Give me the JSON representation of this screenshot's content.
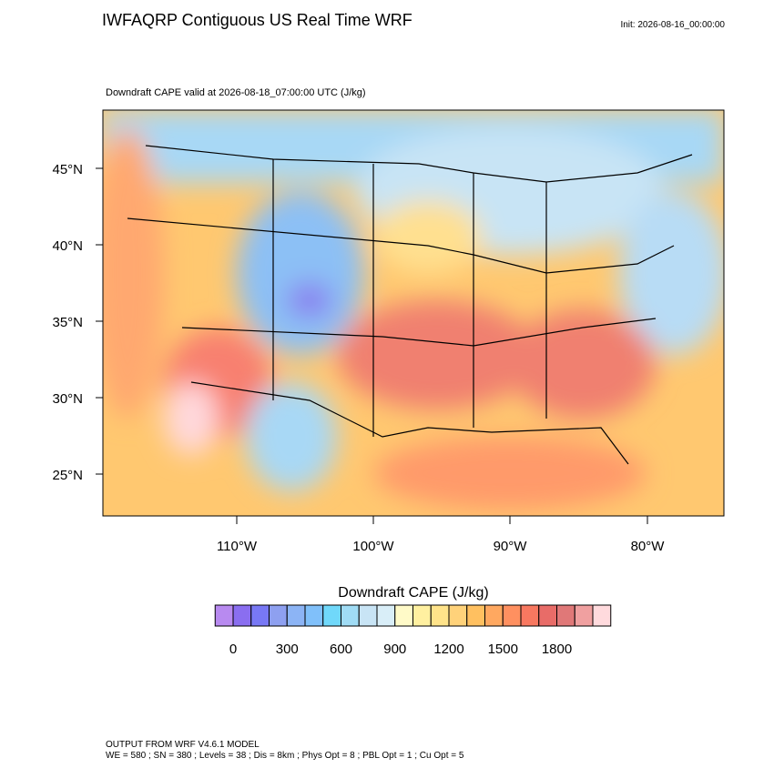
{
  "header": {
    "title": "IWFAQRP Contiguous US Real Time WRF",
    "init": "Init: 2026-08-16_00:00:00"
  },
  "map": {
    "subtitle": "Downdraft CAPE valid at 2026-08-18_07:00:00 UTC   (J/kg)",
    "lat_labels": [
      "45°N",
      "40°N",
      "35°N",
      "30°N",
      "25°N"
    ],
    "lon_labels": [
      "110°W",
      "100°W",
      "90°W",
      "80°W"
    ]
  },
  "colorbar": {
    "title": "Downdraft CAPE  (J/kg)",
    "levels": [
      0,
      100,
      200,
      300,
      400,
      500,
      600,
      700,
      800,
      900,
      1000,
      1100,
      1200,
      1300,
      1400,
      1500,
      1600,
      1700,
      1800,
      1900,
      2000
    ],
    "ticks": [
      0,
      300,
      600,
      900,
      1200,
      1500,
      1800
    ],
    "colors": [
      "#b88af0",
      "#8a6ef0",
      "#7878f5",
      "#8ea0f0",
      "#8cb4f5",
      "#80c0fa",
      "#70d8fa",
      "#a0dcf5",
      "#c8e4f5",
      "#d9eef8",
      "#fffac8",
      "#fff0a0",
      "#ffe38a",
      "#ffd27a",
      "#ffc060",
      "#ffa860",
      "#ff9060",
      "#f87860",
      "#e86c68",
      "#e07878",
      "#f0a0a0",
      "#ffdadd"
    ]
  },
  "footer": {
    "line1": "OUTPUT FROM WRF V4.6.1 MODEL",
    "line2": "WE = 580 ; SN = 380 ; Levels = 38 ; Dis = 8km ; Phys Opt = 8 ; PBL Opt = 1 ; Cu Opt = 5"
  }
}
